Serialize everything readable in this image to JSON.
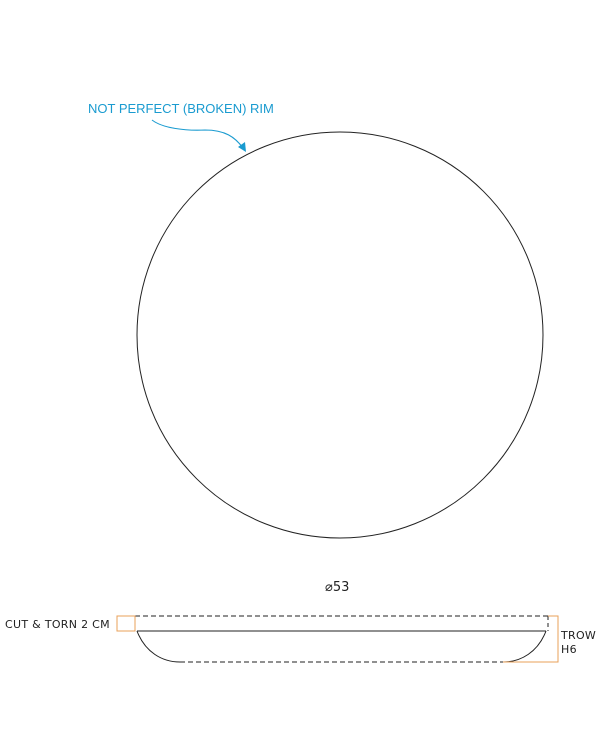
{
  "annotations": {
    "rim_note": "NOT PERFECT (BROKEN) RIM",
    "diameter": "⌀53",
    "cut_torn": "CUT & TORN 2 CM",
    "trow_line1": "TROW",
    "trow_line2": "H6"
  },
  "colors": {
    "line": "#222222",
    "note": "#1a9bd0",
    "dimension_box": "#e8a05a"
  }
}
